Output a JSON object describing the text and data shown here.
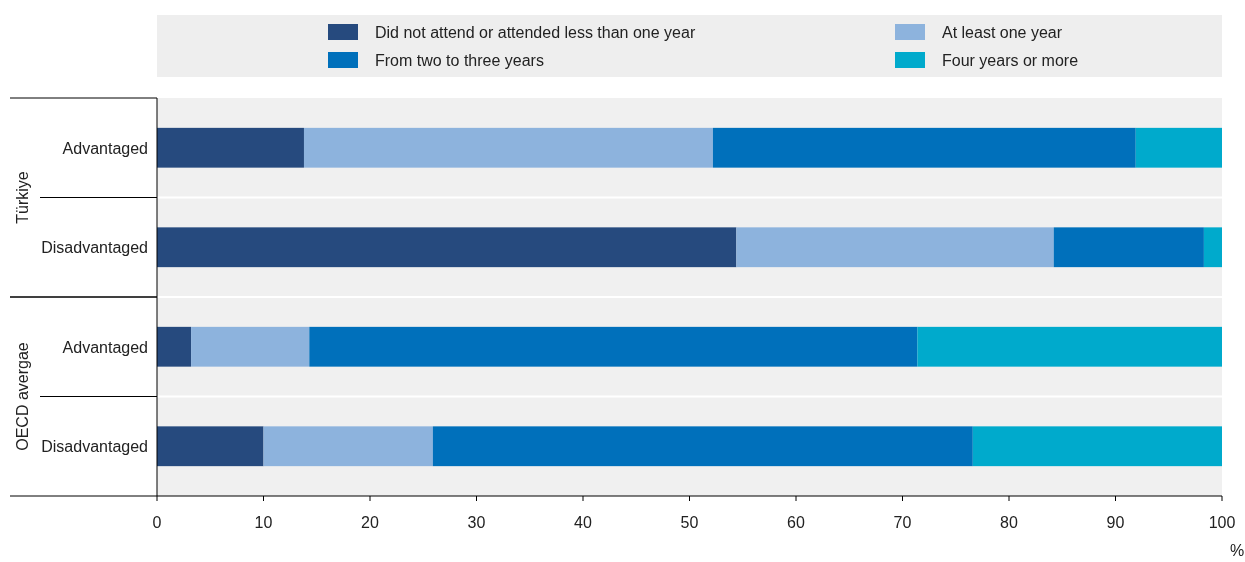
{
  "chart_data": {
    "type": "bar",
    "orientation": "horizontal",
    "stacked": true,
    "categories": [
      "Advantaged",
      "Disadvantaged",
      "Advantaged",
      "Disadvantaged"
    ],
    "series": [
      {
        "name": "Did not attend or attended less than one year",
        "color": "#264a7e",
        "values": [
          13.8,
          54.4,
          3.2,
          10.0
        ]
      },
      {
        "name": "At least one year",
        "color": "#8db3dd",
        "values": [
          38.4,
          29.8,
          11.1,
          15.9
        ]
      },
      {
        "name": "From two to three years",
        "color": "#0070bb",
        "values": [
          39.7,
          14.1,
          57.1,
          50.7
        ]
      },
      {
        "name": "Four years or more",
        "color": "#00aacc",
        "values": [
          8.1,
          1.7,
          28.6,
          23.4
        ]
      }
    ],
    "xlim": [
      0,
      100
    ],
    "xticks": [
      0,
      10,
      20,
      30,
      40,
      50,
      60,
      70,
      80,
      90,
      100
    ],
    "xlabel": "%",
    "legend": "top",
    "grid": "y",
    "annotations": [
      "Türkiye",
      "OECD avergae"
    ]
  }
}
